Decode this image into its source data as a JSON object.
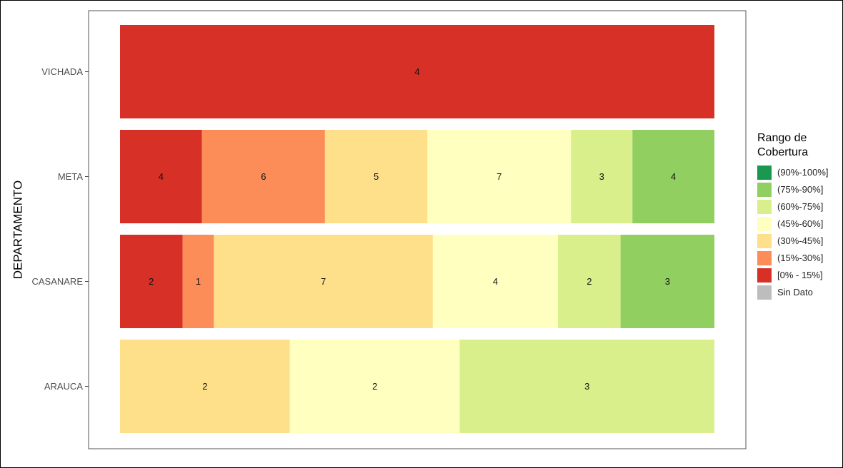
{
  "chart_data": {
    "type": "bar",
    "orientation": "horizontal",
    "stacked": true,
    "normalized": true,
    "ylabel": "DEPARTAMENTO",
    "xlabel": "",
    "categories": [
      "VICHADA",
      "META",
      "CASANARE",
      "ARAUCA"
    ],
    "series": [
      {
        "name": "[0% - 15%]",
        "color": "#d73027",
        "values": [
          4,
          4,
          2,
          0
        ]
      },
      {
        "name": "(15%-30%]",
        "color": "#fc8d59",
        "values": [
          0,
          6,
          1,
          0
        ]
      },
      {
        "name": "(30%-45%]",
        "color": "#fee08b",
        "values": [
          0,
          5,
          7,
          2
        ]
      },
      {
        "name": "(45%-60%]",
        "color": "#ffffbf",
        "values": [
          0,
          7,
          4,
          2
        ]
      },
      {
        "name": "(60%-75%]",
        "color": "#d9ef8b",
        "values": [
          0,
          3,
          2,
          3
        ]
      },
      {
        "name": "(75%-90%]",
        "color": "#91cf60",
        "values": [
          0,
          4,
          3,
          0
        ]
      },
      {
        "name": "(90%-100%]",
        "color": "#1a9850",
        "values": [
          0,
          0,
          0,
          0
        ]
      },
      {
        "name": "Sin Dato",
        "color": "#bdbdbd",
        "values": [
          0,
          0,
          0,
          0
        ]
      }
    ],
    "legend": {
      "title": [
        "Rango de",
        "Cobertura"
      ],
      "placement": "right",
      "items": [
        {
          "label": "(90%-100%]",
          "color": "#1a9850"
        },
        {
          "label": "(75%-90%]",
          "color": "#91cf60"
        },
        {
          "label": "(60%-75%]",
          "color": "#d9ef8b"
        },
        {
          "label": "(45%-60%]",
          "color": "#ffffbf"
        },
        {
          "label": "(30%-45%]",
          "color": "#fee08b"
        },
        {
          "label": "(15%-30%]",
          "color": "#fc8d59"
        },
        {
          "label": "[0% - 15%]",
          "color": "#d73027"
        },
        {
          "label": "Sin Dato",
          "color": "#bdbdbd"
        }
      ]
    },
    "grid": false
  }
}
